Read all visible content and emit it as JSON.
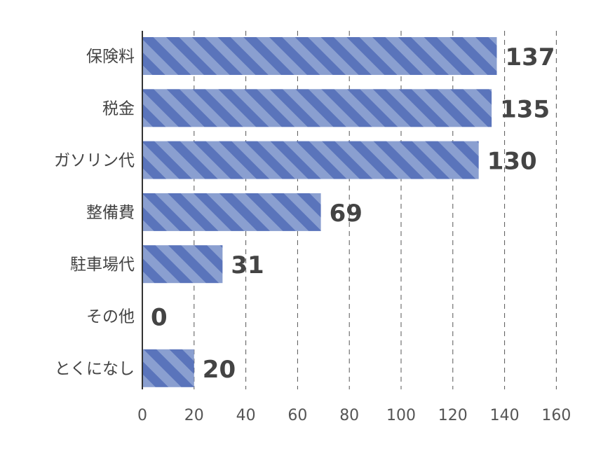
{
  "chart_data": {
    "type": "bar",
    "orientation": "horizontal",
    "categories": [
      "保険料",
      "税金",
      "ガソリン代",
      "整備費",
      "駐車場代",
      "その他",
      "とくになし"
    ],
    "values": [
      137,
      135,
      130,
      69,
      31,
      0,
      20
    ],
    "xlim": [
      0,
      160
    ],
    "xticks": [
      0,
      20,
      40,
      60,
      80,
      100,
      120,
      140,
      160
    ],
    "title": "",
    "xlabel": "",
    "ylabel": "",
    "grid": "vertical dashed",
    "bar_fill": "striped",
    "colors": {
      "bar_light": "#8a9fd0",
      "bar_dark": "#5a74bb",
      "label": "#444444",
      "grid": "#555555"
    }
  }
}
